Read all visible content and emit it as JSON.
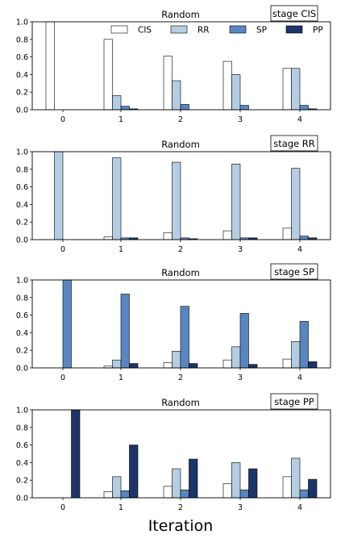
{
  "xlabel": "Iteration",
  "colors": {
    "CIS": "#ffffff",
    "RR": "#b5cde3",
    "SP": "#5a86c0",
    "PP": "#1d3467",
    "edge": "#000000"
  },
  "chart_data": [
    {
      "type": "bar",
      "title": "Random",
      "stage_label": "stage CIS",
      "categories": [
        "0",
        "1",
        "2",
        "3",
        "4"
      ],
      "ylim": [
        0,
        1.0
      ],
      "yticks": [
        "0.0",
        "0.2",
        "0.4",
        "0.6",
        "0.8",
        "1.0"
      ],
      "legend": {
        "placement": "top",
        "entries": [
          "CIS",
          "RR",
          "SP",
          "PP"
        ]
      },
      "series": [
        {
          "name": "CIS",
          "values": [
            1.0,
            0.8,
            0.61,
            0.55,
            0.47
          ]
        },
        {
          "name": "RR",
          "values": [
            0.0,
            0.16,
            0.33,
            0.4,
            0.47
          ]
        },
        {
          "name": "SP",
          "values": [
            0.0,
            0.04,
            0.06,
            0.05,
            0.05
          ]
        },
        {
          "name": "PP",
          "values": [
            0.0,
            0.01,
            0.0,
            0.0,
            0.01
          ]
        }
      ]
    },
    {
      "type": "bar",
      "title": "Random",
      "stage_label": "stage RR",
      "categories": [
        "0",
        "1",
        "2",
        "3",
        "4"
      ],
      "ylim": [
        0,
        1.0
      ],
      "yticks": [
        "0.0",
        "0.2",
        "0.4",
        "0.6",
        "0.8",
        "1.0"
      ],
      "series": [
        {
          "name": "CIS",
          "values": [
            0.0,
            0.03,
            0.08,
            0.1,
            0.13
          ]
        },
        {
          "name": "RR",
          "values": [
            1.0,
            0.93,
            0.88,
            0.86,
            0.81
          ]
        },
        {
          "name": "SP",
          "values": [
            0.0,
            0.02,
            0.02,
            0.02,
            0.04
          ]
        },
        {
          "name": "PP",
          "values": [
            0.0,
            0.02,
            0.01,
            0.02,
            0.02
          ]
        }
      ]
    },
    {
      "type": "bar",
      "title": "Random",
      "stage_label": "stage SP",
      "categories": [
        "0",
        "1",
        "2",
        "3",
        "4"
      ],
      "ylim": [
        0,
        1.0
      ],
      "yticks": [
        "0.0",
        "0.2",
        "0.4",
        "0.6",
        "0.8",
        "1.0"
      ],
      "series": [
        {
          "name": "CIS",
          "values": [
            0.0,
            0.02,
            0.06,
            0.09,
            0.1
          ]
        },
        {
          "name": "RR",
          "values": [
            0.0,
            0.09,
            0.19,
            0.24,
            0.3
          ]
        },
        {
          "name": "SP",
          "values": [
            1.0,
            0.84,
            0.7,
            0.62,
            0.53
          ]
        },
        {
          "name": "PP",
          "values": [
            0.0,
            0.05,
            0.05,
            0.04,
            0.07
          ]
        }
      ]
    },
    {
      "type": "bar",
      "title": "Random",
      "stage_label": "stage PP",
      "categories": [
        "0",
        "1",
        "2",
        "3",
        "4"
      ],
      "ylim": [
        0,
        1.0
      ],
      "yticks": [
        "0.0",
        "0.2",
        "0.4",
        "0.6",
        "0.8",
        "1.0"
      ],
      "series": [
        {
          "name": "CIS",
          "values": [
            0.0,
            0.07,
            0.13,
            0.16,
            0.24
          ]
        },
        {
          "name": "RR",
          "values": [
            0.0,
            0.24,
            0.33,
            0.4,
            0.45
          ]
        },
        {
          "name": "SP",
          "values": [
            0.0,
            0.08,
            0.09,
            0.09,
            0.09
          ]
        },
        {
          "name": "PP",
          "values": [
            1.0,
            0.6,
            0.44,
            0.33,
            0.21
          ]
        }
      ]
    }
  ]
}
